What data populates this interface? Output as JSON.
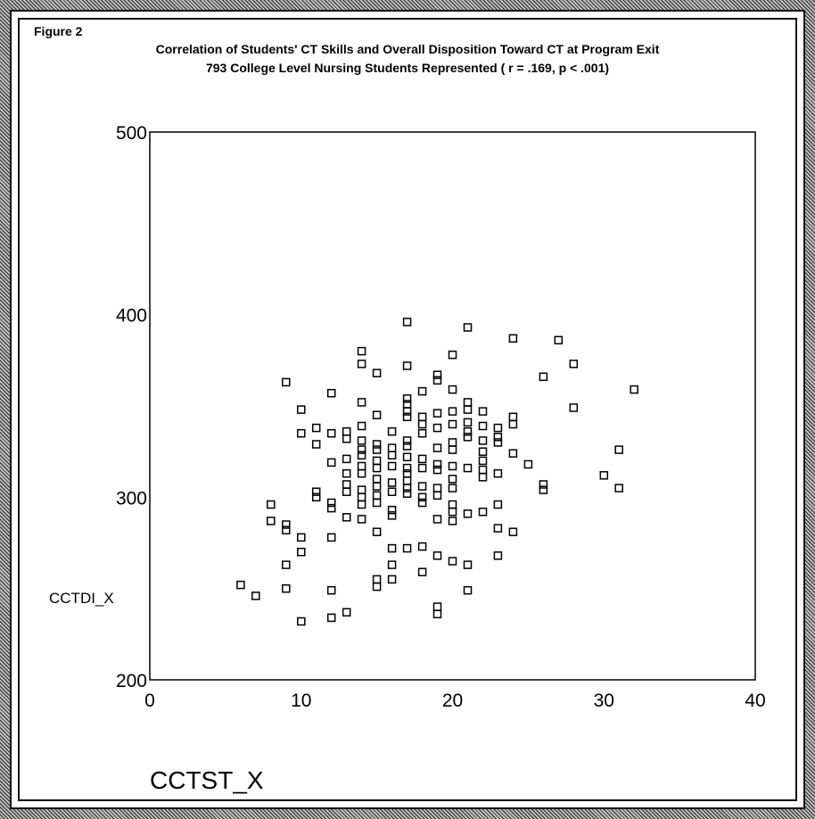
{
  "figure_label": "Figure 2",
  "chart_data": {
    "type": "scatter",
    "title": "Correlation of Students' CT Skills and Overall Disposition Toward CT at Program Exit",
    "subtitle": "793 College Level Nursing Students Represented ( r = .169, p < .001)",
    "xlabel": "CCTST_X",
    "ylabel": "CCTDI_X",
    "xlim": [
      0,
      40
    ],
    "ylim": [
      200,
      500
    ],
    "x_ticks": [
      "0",
      "10",
      "20",
      "30",
      "40"
    ],
    "y_ticks": [
      "200",
      "300",
      "400",
      "500"
    ],
    "grid": false,
    "marker": "open-square",
    "points": [
      [
        6,
        252
      ],
      [
        7,
        246
      ],
      [
        8,
        296
      ],
      [
        8,
        287
      ],
      [
        9,
        363
      ],
      [
        9,
        285
      ],
      [
        9,
        282
      ],
      [
        9,
        263
      ],
      [
        9,
        250
      ],
      [
        10,
        348
      ],
      [
        10,
        335
      ],
      [
        10,
        278
      ],
      [
        10,
        270
      ],
      [
        10,
        232
      ],
      [
        11,
        338
      ],
      [
        11,
        329
      ],
      [
        11,
        303
      ],
      [
        11,
        300
      ],
      [
        12,
        357
      ],
      [
        12,
        335
      ],
      [
        12,
        319
      ],
      [
        12,
        297
      ],
      [
        12,
        294
      ],
      [
        12,
        278
      ],
      [
        12,
        249
      ],
      [
        12,
        234
      ],
      [
        13,
        336
      ],
      [
        13,
        332
      ],
      [
        13,
        321
      ],
      [
        13,
        313
      ],
      [
        13,
        307
      ],
      [
        13,
        303
      ],
      [
        13,
        289
      ],
      [
        13,
        237
      ],
      [
        14,
        380
      ],
      [
        14,
        373
      ],
      [
        14,
        352
      ],
      [
        14,
        339
      ],
      [
        14,
        331
      ],
      [
        14,
        326
      ],
      [
        14,
        323
      ],
      [
        14,
        317
      ],
      [
        14,
        313
      ],
      [
        14,
        304
      ],
      [
        14,
        300
      ],
      [
        14,
        296
      ],
      [
        14,
        288
      ],
      [
        15,
        368
      ],
      [
        15,
        345
      ],
      [
        15,
        329
      ],
      [
        15,
        326
      ],
      [
        15,
        320
      ],
      [
        15,
        316
      ],
      [
        15,
        310
      ],
      [
        15,
        306
      ],
      [
        15,
        301
      ],
      [
        15,
        297
      ],
      [
        15,
        281
      ],
      [
        15,
        255
      ],
      [
        15,
        251
      ],
      [
        16,
        336
      ],
      [
        16,
        327
      ],
      [
        16,
        323
      ],
      [
        16,
        317
      ],
      [
        16,
        308
      ],
      [
        16,
        303
      ],
      [
        16,
        293
      ],
      [
        16,
        290
      ],
      [
        16,
        272
      ],
      [
        16,
        263
      ],
      [
        16,
        255
      ],
      [
        17,
        396
      ],
      [
        17,
        372
      ],
      [
        17,
        354
      ],
      [
        17,
        351
      ],
      [
        17,
        347
      ],
      [
        17,
        344
      ],
      [
        17,
        331
      ],
      [
        17,
        328
      ],
      [
        17,
        322
      ],
      [
        17,
        316
      ],
      [
        17,
        313
      ],
      [
        17,
        309
      ],
      [
        17,
        305
      ],
      [
        17,
        302
      ],
      [
        17,
        272
      ],
      [
        18,
        358
      ],
      [
        18,
        344
      ],
      [
        18,
        340
      ],
      [
        18,
        335
      ],
      [
        18,
        321
      ],
      [
        18,
        316
      ],
      [
        18,
        306
      ],
      [
        18,
        300
      ],
      [
        18,
        297
      ],
      [
        18,
        273
      ],
      [
        18,
        259
      ],
      [
        19,
        367
      ],
      [
        19,
        364
      ],
      [
        19,
        346
      ],
      [
        19,
        338
      ],
      [
        19,
        327
      ],
      [
        19,
        318
      ],
      [
        19,
        315
      ],
      [
        19,
        305
      ],
      [
        19,
        301
      ],
      [
        19,
        288
      ],
      [
        19,
        268
      ],
      [
        19,
        240
      ],
      [
        19,
        236
      ],
      [
        20,
        378
      ],
      [
        20,
        359
      ],
      [
        20,
        347
      ],
      [
        20,
        340
      ],
      [
        20,
        330
      ],
      [
        20,
        326
      ],
      [
        20,
        317
      ],
      [
        20,
        310
      ],
      [
        20,
        305
      ],
      [
        20,
        296
      ],
      [
        20,
        292
      ],
      [
        20,
        287
      ],
      [
        20,
        265
      ],
      [
        21,
        393
      ],
      [
        21,
        352
      ],
      [
        21,
        348
      ],
      [
        21,
        341
      ],
      [
        21,
        336
      ],
      [
        21,
        333
      ],
      [
        21,
        316
      ],
      [
        21,
        291
      ],
      [
        21,
        263
      ],
      [
        21,
        249
      ],
      [
        22,
        347
      ],
      [
        22,
        339
      ],
      [
        22,
        331
      ],
      [
        22,
        325
      ],
      [
        22,
        320
      ],
      [
        22,
        315
      ],
      [
        22,
        311
      ],
      [
        22,
        292
      ],
      [
        23,
        338
      ],
      [
        23,
        333
      ],
      [
        23,
        330
      ],
      [
        23,
        313
      ],
      [
        23,
        296
      ],
      [
        23,
        283
      ],
      [
        23,
        268
      ],
      [
        24,
        387
      ],
      [
        24,
        344
      ],
      [
        24,
        340
      ],
      [
        24,
        324
      ],
      [
        24,
        281
      ],
      [
        25,
        318
      ],
      [
        26,
        366
      ],
      [
        26,
        307
      ],
      [
        26,
        304
      ],
      [
        27,
        386
      ],
      [
        28,
        373
      ],
      [
        28,
        349
      ],
      [
        30,
        312
      ],
      [
        31,
        326
      ],
      [
        31,
        305
      ],
      [
        32,
        359
      ]
    ]
  }
}
